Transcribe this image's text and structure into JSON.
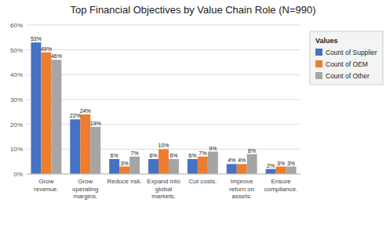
{
  "chart_data": {
    "type": "bar",
    "title": "Top Financial Objectives by Value Chain Role (N=990)",
    "categories": [
      "Grow\nrevenue.",
      "Grow\noperating\nmargins.",
      "Reduce risk.",
      "Expand into\nglobal\nmarkets.",
      "Cut costs.",
      "Improve\nreturn on\nassets.",
      "Ensure\ncompliance."
    ],
    "series": [
      {
        "name": "Count of Supplier",
        "color": "#4472C4",
        "values": [
          53,
          22,
          6,
          6,
          6,
          4,
          2
        ],
        "value_labels": [
          "53%",
          "22%",
          "6%",
          "6%",
          "6%",
          "4%",
          "2%"
        ]
      },
      {
        "name": "Count of OEM",
        "color": "#ED7D31",
        "values": [
          49,
          24,
          3,
          10,
          7,
          4,
          3
        ],
        "value_labels": [
          "49%",
          "24%",
          "3%",
          "10%",
          "7%",
          "4%",
          "3%"
        ]
      },
      {
        "name": "Count of Other",
        "color": "#A5A5A5",
        "values": [
          46,
          19,
          7,
          6,
          9,
          8,
          3
        ],
        "value_labels": [
          "46%",
          "19%",
          "7%",
          "6%",
          "9%",
          "8%",
          "3%"
        ]
      }
    ],
    "legend_title": "Values",
    "legend": "right",
    "ylim": [
      0,
      60
    ],
    "yticks": [
      {
        "value": 0,
        "label": "0%"
      },
      {
        "value": 10,
        "label": "10%"
      },
      {
        "value": 20,
        "label": "20%"
      },
      {
        "value": 30,
        "label": "30%"
      },
      {
        "value": 40,
        "label": "40%"
      },
      {
        "value": 50,
        "label": "50%"
      },
      {
        "value": 60,
        "label": "60%"
      }
    ],
    "grid": true,
    "data_labels": true
  }
}
